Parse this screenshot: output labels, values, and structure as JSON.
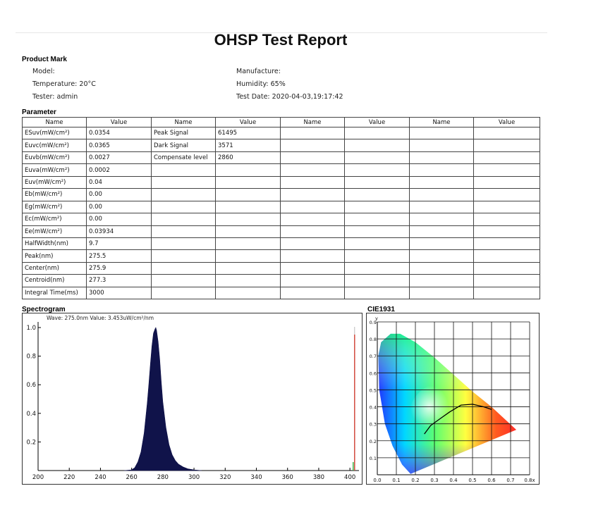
{
  "report_title": "OHSP Test Report",
  "product_mark": {
    "heading": "Product Mark",
    "model": "Model:",
    "temperature": "Temperature: 20°C",
    "tester": "Tester: admin",
    "manufacture": "Manufacture:",
    "humidity": "Humidity: 65%",
    "test_date": "Test Date: 2020-04-03,19:17:42"
  },
  "parameter": {
    "heading": "Parameter",
    "col_name": "Name",
    "col_value": "Value",
    "rows": [
      {
        "c1": "ESuv(mW/cm²)",
        "c2": "0.0354",
        "c3": "Peak Signal",
        "c4": "61495"
      },
      {
        "c1": "Euvc(mW/cm²)",
        "c2": "0.0365",
        "c3": "Dark Signal",
        "c4": "3571"
      },
      {
        "c1": "Euvb(mW/cm²)",
        "c2": "0.0027",
        "c3": "Compensate level",
        "c4": "2860"
      },
      {
        "c1": "Euva(mW/cm²)",
        "c2": "0.0002",
        "c3": "",
        "c4": ""
      },
      {
        "c1": "Euv(mW/cm²)",
        "c2": "0.04",
        "c3": "",
        "c4": ""
      },
      {
        "c1": "Eb(mW/cm²)",
        "c2": "0.00",
        "c3": "",
        "c4": ""
      },
      {
        "c1": "Eg(mW/cm²)",
        "c2": "0.00",
        "c3": "",
        "c4": ""
      },
      {
        "c1": "Ec(mW/cm²)",
        "c2": "0.00",
        "c3": "",
        "c4": ""
      },
      {
        "c1": "Ee(mW/cm²)",
        "c2": "0.03934",
        "c3": "",
        "c4": ""
      },
      {
        "c1": "HalfWidth(nm)",
        "c2": "9.7",
        "c3": "",
        "c4": ""
      },
      {
        "c1": "Peak(nm)",
        "c2": "275.5",
        "c3": "",
        "c4": ""
      },
      {
        "c1": "Center(nm)",
        "c2": "275.9",
        "c3": "",
        "c4": ""
      },
      {
        "c1": "Centroid(nm)",
        "c2": "277.3",
        "c3": "",
        "c4": ""
      },
      {
        "c1": "Integral Time(ms)",
        "c2": "3000",
        "c3": "",
        "c4": ""
      }
    ]
  },
  "spectrogram": {
    "heading": "Spectrogram",
    "readout": "Wave: 275.0nm Value: 3.453uW/cm²/nm",
    "chart_data": {
      "type": "area",
      "x_ticks": [
        "200",
        "220",
        "240",
        "260",
        "280",
        "300",
        "320",
        "340",
        "360",
        "380",
        "400"
      ],
      "y_ticks": [
        "1.0",
        "0.8",
        "0.6",
        "0.4",
        "0.2"
      ],
      "xlim": [
        200,
        404
      ],
      "ylim": [
        0,
        1.0
      ],
      "x": [
        255,
        260,
        262,
        264,
        266,
        268,
        270,
        271,
        272,
        273,
        274,
        275,
        275.5,
        276,
        277,
        278,
        279,
        280,
        282,
        284,
        286,
        288,
        290,
        293,
        296,
        300,
        305
      ],
      "y": [
        0,
        0.005,
        0.02,
        0.06,
        0.13,
        0.26,
        0.47,
        0.6,
        0.74,
        0.87,
        0.96,
        0.99,
        1.0,
        0.98,
        0.9,
        0.78,
        0.62,
        0.48,
        0.3,
        0.18,
        0.11,
        0.07,
        0.045,
        0.025,
        0.012,
        0.005,
        0
      ],
      "fill_color": "#10134a",
      "cursor_x": 403,
      "cursor_color": "#d24a3e"
    }
  },
  "cie": {
    "heading": "CIE1931",
    "chart_data": {
      "type": "scatter",
      "x_ticks": [
        "0.0",
        "0.1",
        "0.2",
        "0.3",
        "0.4",
        "0.5",
        "0.6",
        "0.7",
        "0.8x"
      ],
      "y_ticks": [
        "0.9",
        "0.8",
        "0.7",
        "0.6",
        "0.5",
        "0.4",
        "0.3",
        "0.2",
        "0.1"
      ],
      "y_axis_label": "y",
      "xlim": [
        0,
        0.8
      ],
      "ylim": [
        0,
        0.9
      ],
      "planckian_locus": [
        [
          0.247,
          0.24
        ],
        [
          0.28,
          0.29
        ],
        [
          0.33,
          0.33
        ],
        [
          0.38,
          0.37
        ],
        [
          0.44,
          0.41
        ],
        [
          0.5,
          0.415
        ],
        [
          0.56,
          0.4
        ],
        [
          0.6,
          0.385
        ]
      ],
      "gamut": [
        [
          0.175,
          0.005
        ],
        [
          0.13,
          0.06
        ],
        [
          0.08,
          0.17
        ],
        [
          0.04,
          0.3
        ],
        [
          0.01,
          0.5
        ],
        [
          0.005,
          0.7
        ],
        [
          0.02,
          0.78
        ],
        [
          0.07,
          0.83
        ],
        [
          0.12,
          0.83
        ],
        [
          0.2,
          0.78
        ],
        [
          0.3,
          0.69
        ],
        [
          0.4,
          0.59
        ],
        [
          0.5,
          0.49
        ],
        [
          0.6,
          0.4
        ],
        [
          0.73,
          0.265
        ],
        [
          0.175,
          0.005
        ]
      ]
    }
  }
}
